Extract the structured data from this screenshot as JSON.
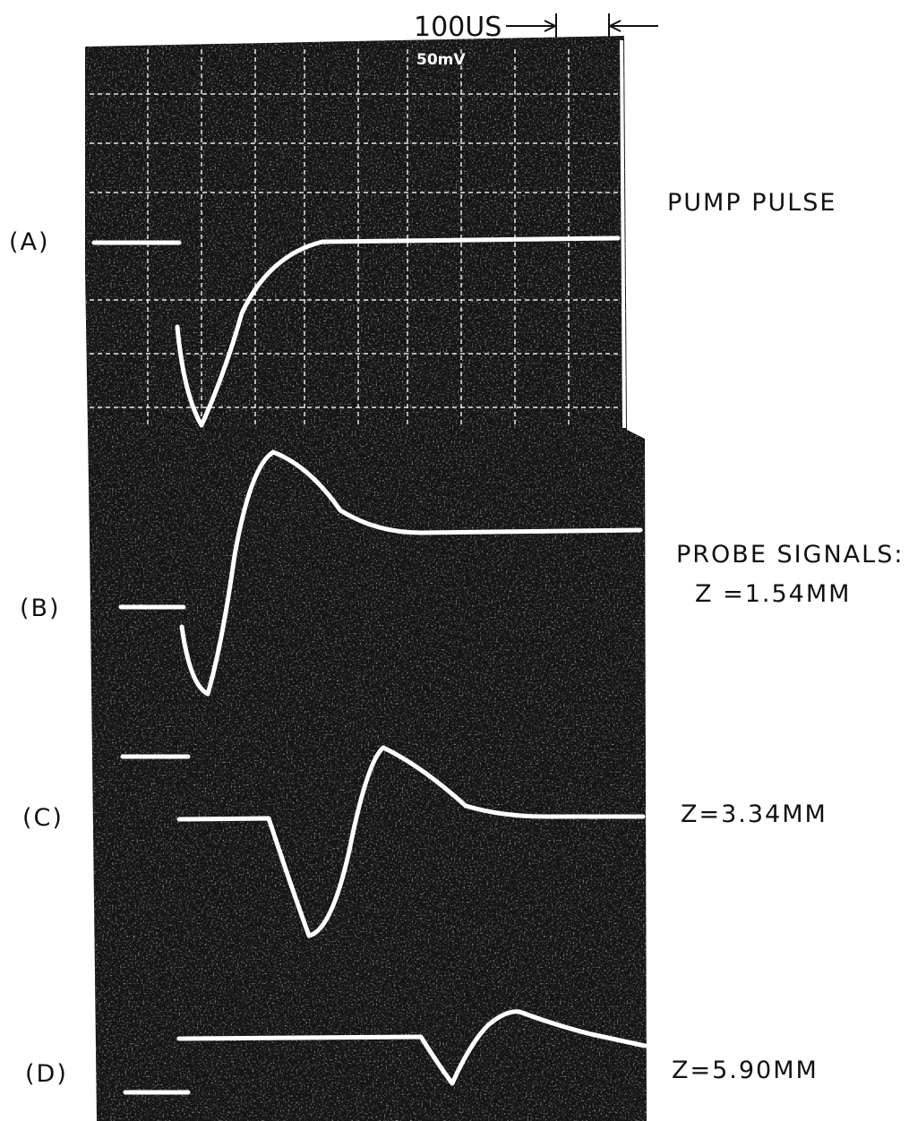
{
  "scale_label": "100US",
  "scope_readout": "50mV",
  "probe_heading": "PROBE SIGNALS:",
  "traces": [
    {
      "label": "(A)",
      "caption": "PUMP PULSE"
    },
    {
      "label": "(B)",
      "caption": "Z =1.54MM"
    },
    {
      "label": "(C)",
      "caption": "Z=3.34MM"
    },
    {
      "label": "(D)",
      "caption": "Z=5.90MM"
    }
  ]
}
